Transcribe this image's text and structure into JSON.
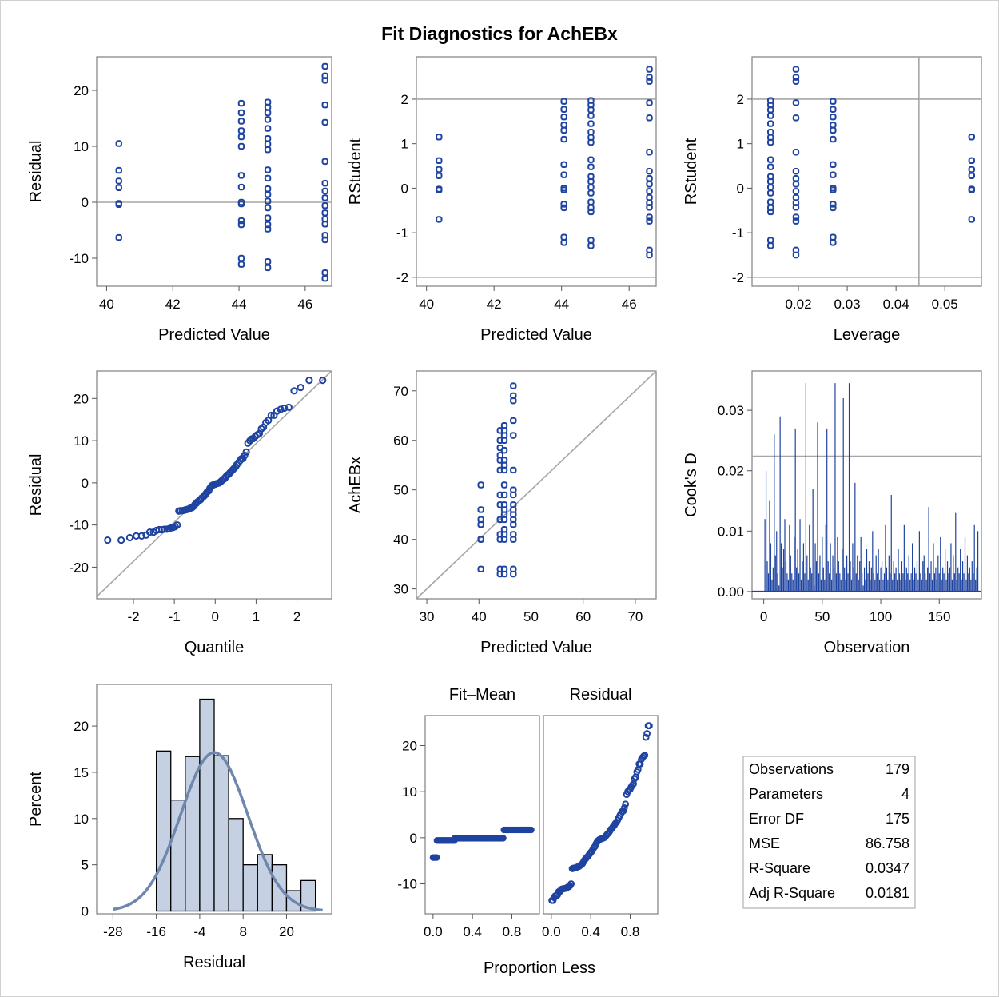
{
  "title": "Fit Diagnostics for AchEBx",
  "colors": {
    "marker": "#1f43a0",
    "reference": "#a6a6a6",
    "bar_fill": "#c5d0e3",
    "curve": "#6e87ad"
  },
  "chart_data": [
    {
      "id": "resid-vs-pred",
      "type": "scatter",
      "xlabel": "Predicted Value",
      "ylabel": "Residual",
      "xlim": [
        39.7,
        46.8
      ],
      "ylim": [
        -15,
        26
      ],
      "xticks": [
        40,
        42,
        44,
        46
      ],
      "yticks": [
        -10,
        0,
        10,
        20
      ],
      "hlines": [
        0
      ],
      "groups": [
        {
          "x": 40.37,
          "y": [
            10.5,
            5.7,
            3.8,
            2.6,
            -0.2,
            -0.4,
            -6.3
          ]
        },
        {
          "x": 44.07,
          "y": [
            17.7,
            16.0,
            14.5,
            12.8,
            11.7,
            10.0,
            4.8,
            2.7,
            0.0,
            -0.3,
            -3.3,
            -4.0,
            -10.0,
            -11.1
          ]
        },
        {
          "x": 44.87,
          "y": [
            17.9,
            17.0,
            16.0,
            14.8,
            13.2,
            11.4,
            10.4,
            9.4,
            5.8,
            4.3,
            2.4,
            1.4,
            0.2,
            -1.0,
            -2.8,
            -4.0,
            -4.8,
            -10.6,
            -11.7
          ]
        },
        {
          "x": 46.6,
          "y": [
            24.3,
            22.6,
            21.8,
            17.4,
            14.3,
            7.3,
            3.4,
            2.0,
            0.8,
            -0.6,
            -1.9,
            -3.0,
            -3.9,
            -5.9,
            -6.7,
            -12.6,
            -13.6
          ]
        }
      ]
    },
    {
      "id": "rstudent-vs-pred",
      "type": "scatter",
      "xlabel": "Predicted Value",
      "ylabel": "RStudent",
      "xlim": [
        39.7,
        46.8
      ],
      "ylim": [
        -2.2,
        2.95
      ],
      "xticks": [
        40,
        42,
        44,
        46
      ],
      "yticks": [
        -2,
        -1,
        0,
        1,
        2
      ],
      "hlines": [
        2,
        -2
      ],
      "groups": [
        {
          "x": 40.37,
          "y": [
            1.15,
            0.62,
            0.42,
            0.28,
            -0.02,
            -0.04,
            -0.7
          ]
        },
        {
          "x": 44.07,
          "y": [
            1.95,
            1.77,
            1.6,
            1.42,
            1.3,
            1.1,
            0.53,
            0.3,
            0.0,
            -0.04,
            -0.36,
            -0.44,
            -1.1,
            -1.22
          ]
        },
        {
          "x": 44.87,
          "y": [
            1.97,
            1.87,
            1.76,
            1.63,
            1.45,
            1.26,
            1.14,
            1.03,
            0.64,
            0.48,
            0.26,
            0.15,
            0.02,
            -0.11,
            -0.31,
            -0.44,
            -0.53,
            -1.17,
            -1.29
          ]
        },
        {
          "x": 46.6,
          "y": [
            2.67,
            2.49,
            2.4,
            1.92,
            1.58,
            0.81,
            0.38,
            0.22,
            0.09,
            -0.07,
            -0.21,
            -0.33,
            -0.43,
            -0.65,
            -0.74,
            -1.39,
            -1.5
          ]
        }
      ]
    },
    {
      "id": "rstudent-vs-leverage",
      "type": "scatter",
      "xlabel": "Leverage",
      "ylabel": "RStudent",
      "xlim": [
        0.0105,
        0.0575
      ],
      "ylim": [
        -2.2,
        2.95
      ],
      "xticks": [
        0.02,
        0.03,
        0.04,
        0.05
      ],
      "xticklabels": [
        "0.02",
        "0.03",
        "0.04",
        "0.05"
      ],
      "yticks": [
        -2,
        -1,
        0,
        1,
        2
      ],
      "hlines": [
        2,
        -2
      ],
      "vlines": [
        0.0447
      ],
      "groups": [
        {
          "x": 0.0555,
          "y": [
            1.15,
            0.62,
            0.42,
            0.28,
            -0.02,
            -0.04,
            -0.7
          ]
        },
        {
          "x": 0.0271,
          "y": [
            1.95,
            1.77,
            1.6,
            1.42,
            1.3,
            1.1,
            0.53,
            0.3,
            0.0,
            -0.04,
            -0.36,
            -0.44,
            -1.1,
            -1.22
          ]
        },
        {
          "x": 0.0143,
          "y": [
            1.97,
            1.87,
            1.76,
            1.63,
            1.45,
            1.26,
            1.14,
            1.03,
            0.64,
            0.48,
            0.26,
            0.15,
            0.02,
            -0.11,
            -0.31,
            -0.44,
            -0.53,
            -1.17,
            -1.29
          ]
        },
        {
          "x": 0.0195,
          "y": [
            2.67,
            2.49,
            2.4,
            1.92,
            1.58,
            0.81,
            0.38,
            0.22,
            0.09,
            -0.07,
            -0.21,
            -0.33,
            -0.43,
            -0.65,
            -0.74,
            -1.39,
            -1.5
          ]
        }
      ]
    },
    {
      "id": "qq-plot",
      "type": "scatter",
      "xlabel": "Quantile",
      "ylabel": "Residual",
      "xlim": [
        -2.9,
        2.85
      ],
      "ylim": [
        -27.5,
        26.5
      ],
      "xticks": [
        -2,
        -1,
        0,
        1,
        2
      ],
      "yticks": [
        -20,
        -10,
        0,
        10,
        20
      ],
      "refline": {
        "slope": 9.31,
        "intercept": 0
      },
      "points": [
        [
          -2.63,
          -13.6
        ],
        [
          -2.3,
          -13.6
        ],
        [
          -2.09,
          -13.0
        ],
        [
          -1.93,
          -12.6
        ],
        [
          -1.8,
          -12.6
        ],
        [
          -1.69,
          -12.4
        ],
        [
          -1.6,
          -11.7
        ],
        [
          -1.51,
          -11.7
        ],
        [
          -1.44,
          -11.3
        ],
        [
          -1.37,
          -11.1
        ],
        [
          -1.3,
          -11.1
        ],
        [
          -1.24,
          -11.0
        ],
        [
          -1.18,
          -11.0
        ],
        [
          -1.13,
          -10.9
        ],
        [
          -1.08,
          -10.7
        ],
        [
          -1.03,
          -10.6
        ],
        [
          -0.98,
          -10.4
        ],
        [
          -0.93,
          -10.0
        ],
        [
          -0.89,
          -6.7
        ],
        [
          -0.85,
          -6.6
        ],
        [
          -0.8,
          -6.6
        ],
        [
          -0.76,
          -6.5
        ],
        [
          -0.72,
          -6.4
        ],
        [
          -0.68,
          -6.3
        ],
        [
          -0.64,
          -6.2
        ],
        [
          -0.61,
          -6.0
        ],
        [
          -0.57,
          -5.9
        ],
        [
          -0.53,
          -5.6
        ],
        [
          -0.5,
          -5.2
        ],
        [
          -0.46,
          -4.8
        ],
        [
          -0.43,
          -4.5
        ],
        [
          -0.39,
          -4.2
        ],
        [
          -0.36,
          -4.0
        ],
        [
          -0.33,
          -3.6
        ],
        [
          -0.29,
          -3.3
        ],
        [
          -0.26,
          -3.0
        ],
        [
          -0.23,
          -2.6
        ],
        [
          -0.2,
          -2.2
        ],
        [
          -0.16,
          -1.9
        ],
        [
          -0.13,
          -1.3
        ],
        [
          -0.1,
          -0.9
        ],
        [
          -0.07,
          -0.6
        ],
        [
          -0.03,
          -0.4
        ],
        [
          0.0,
          -0.3
        ],
        [
          0.03,
          -0.2
        ],
        [
          0.07,
          -0.1
        ],
        [
          0.1,
          0.0
        ],
        [
          0.13,
          0.2
        ],
        [
          0.16,
          0.5
        ],
        [
          0.2,
          0.8
        ],
        [
          0.23,
          1.0
        ],
        [
          0.26,
          1.4
        ],
        [
          0.29,
          1.8
        ],
        [
          0.33,
          2.0
        ],
        [
          0.36,
          2.4
        ],
        [
          0.39,
          2.7
        ],
        [
          0.43,
          3.1
        ],
        [
          0.46,
          3.4
        ],
        [
          0.5,
          3.8
        ],
        [
          0.53,
          4.3
        ],
        [
          0.57,
          4.8
        ],
        [
          0.61,
          5.3
        ],
        [
          0.64,
          5.7
        ],
        [
          0.68,
          5.8
        ],
        [
          0.72,
          6.5
        ],
        [
          0.76,
          7.3
        ],
        [
          0.8,
          9.4
        ],
        [
          0.85,
          10.0
        ],
        [
          0.89,
          10.4
        ],
        [
          0.93,
          10.5
        ],
        [
          0.98,
          11.0
        ],
        [
          1.03,
          11.4
        ],
        [
          1.08,
          11.7
        ],
        [
          1.13,
          12.8
        ],
        [
          1.18,
          13.2
        ],
        [
          1.24,
          14.3
        ],
        [
          1.3,
          14.8
        ],
        [
          1.37,
          16.0
        ],
        [
          1.44,
          16.0
        ],
        [
          1.51,
          17.0
        ],
        [
          1.6,
          17.4
        ],
        [
          1.69,
          17.7
        ],
        [
          1.8,
          17.9
        ],
        [
          1.93,
          21.8
        ],
        [
          2.09,
          22.6
        ],
        [
          2.3,
          24.3
        ],
        [
          2.63,
          24.3
        ]
      ]
    },
    {
      "id": "observed-vs-pred",
      "type": "scatter",
      "xlabel": "Predicted Value",
      "ylabel": "AchEBx",
      "xlim": [
        28,
        74
      ],
      "ylim": [
        28,
        74
      ],
      "xticks": [
        30,
        40,
        50,
        60,
        70
      ],
      "yticks": [
        30,
        40,
        50,
        60,
        70
      ],
      "refline": {
        "slope": 1,
        "intercept": 0
      },
      "groups": [
        {
          "x": 40.37,
          "y": [
            51.0,
            46.0,
            44.0,
            43.0,
            40.0,
            40.0,
            34.0
          ]
        },
        {
          "x": 44.07,
          "y": [
            62.0,
            60.0,
            58.5,
            57.0,
            56.0,
            54.0,
            49.0,
            47.0,
            44.0,
            44.0,
            41.0,
            40.0,
            34.0,
            33.0
          ]
        },
        {
          "x": 44.87,
          "y": [
            63.0,
            62.0,
            61.0,
            60.0,
            58.0,
            56.0,
            55.0,
            54.0,
            51.0,
            49.0,
            47.0,
            46.0,
            45.0,
            44.0,
            42.0,
            41.0,
            40.0,
            34.0,
            33.0
          ]
        },
        {
          "x": 46.6,
          "y": [
            71.0,
            69.0,
            68.0,
            64.0,
            61.0,
            54.0,
            50.0,
            49.0,
            47.0,
            46.0,
            45.0,
            44.0,
            43.0,
            41.0,
            40.0,
            34.0,
            33.0
          ]
        }
      ]
    },
    {
      "id": "cooks-d",
      "type": "needle",
      "xlabel": "Observation",
      "ylabel": "Cook's D",
      "xlim": [
        -10,
        186
      ],
      "ylim": [
        -0.0012,
        0.0365
      ],
      "xticks": [
        0,
        50,
        100,
        150
      ],
      "yticks": [
        0,
        0.01,
        0.02,
        0.03
      ],
      "yticklabels": [
        "0.00",
        "0.01",
        "0.02",
        "0.03"
      ],
      "hlines": [
        0.0224
      ],
      "values": [
        0.012,
        0.02,
        0.005,
        0.003,
        0.015,
        0.008,
        0.002,
        0.004,
        0.026,
        0.006,
        0.01,
        0.003,
        0.001,
        0.029,
        0.008,
        0.004,
        0.007,
        0.012,
        0.005,
        0.003,
        0.002,
        0.011,
        0.006,
        0.003,
        0.002,
        0.009,
        0.027,
        0.004,
        0.007,
        0.003,
        0.012,
        0.002,
        0.005,
        0.008,
        0.003,
        0.0345,
        0.006,
        0.002,
        0.011,
        0.004,
        0.003,
        0.017,
        0.001,
        0.008,
        0.005,
        0.028,
        0.003,
        0.006,
        0.002,
        0.009,
        0.004,
        0.002,
        0.011,
        0.027,
        0.005,
        0.003,
        0.008,
        0.002,
        0.006,
        0.004,
        0.0345,
        0.003,
        0.009,
        0.005,
        0.003,
        0.002,
        0.007,
        0.032,
        0.004,
        0.002,
        0.006,
        0.003,
        0.0345,
        0.005,
        0.002,
        0.008,
        0.004,
        0.018,
        0.003,
        0.006,
        0.002,
        0.005,
        0.009,
        0.003,
        0.001,
        0.004,
        0.002,
        0.007,
        0.003,
        0.005,
        0.002,
        0.004,
        0.01,
        0.003,
        0.002,
        0.006,
        0.003,
        0.007,
        0.002,
        0.004,
        0.005,
        0.002,
        0.003,
        0.011,
        0.004,
        0.002,
        0.006,
        0.003,
        0.016,
        0.002,
        0.005,
        0.003,
        0.004,
        0.002,
        0.007,
        0.003,
        0.002,
        0.005,
        0.003,
        0.011,
        0.002,
        0.004,
        0.003,
        0.006,
        0.002,
        0.003,
        0.008,
        0.002,
        0.004,
        0.003,
        0.005,
        0.002,
        0.01,
        0.003,
        0.002,
        0.005,
        0.006,
        0.003,
        0.002,
        0.004,
        0.014,
        0.003,
        0.005,
        0.002,
        0.008,
        0.003,
        0.004,
        0.002,
        0.006,
        0.003,
        0.009,
        0.002,
        0.004,
        0.003,
        0.007,
        0.002,
        0.005,
        0.003,
        0.004,
        0.008,
        0.002,
        0.006,
        0.003,
        0.013,
        0.002,
        0.004,
        0.003,
        0.007,
        0.002,
        0.005,
        0.003,
        0.009,
        0.002,
        0.006,
        0.003,
        0.004,
        0.002,
        0.005,
        0.003,
        0.011,
        0.002,
        0.004,
        0.01
      ]
    },
    {
      "id": "resid-histogram",
      "type": "bar",
      "xlabel": "Residual",
      "ylabel": "Percent",
      "xlim": [
        -32.5,
        32.5
      ],
      "ylim": [
        -0.3,
        24.5
      ],
      "xticks": [
        -28,
        -16,
        -4,
        8,
        20
      ],
      "yticks": [
        0,
        5,
        10,
        15,
        20
      ],
      "bin_width": 4,
      "bins": [
        [
          -16,
          17.3
        ],
        [
          -12,
          12.0
        ],
        [
          -8,
          16.7
        ],
        [
          -4,
          22.9
        ],
        [
          0,
          16.8
        ],
        [
          4,
          10.0
        ],
        [
          8,
          5.0
        ],
        [
          12,
          6.1
        ],
        [
          16,
          5.0
        ],
        [
          20,
          2.2
        ],
        [
          24,
          3.3
        ]
      ],
      "normal_curve": {
        "mean": 0,
        "sd": 9.31
      }
    },
    {
      "id": "rf-fit-mean",
      "type": "scatter",
      "title": "Fit–Mean",
      "ylim": [
        -16.5,
        26.5
      ],
      "xlim": [
        -0.08,
        1.08
      ],
      "xticks": [
        0.0,
        0.4,
        0.8
      ],
      "xticklabels": [
        "0.0",
        "0.4",
        "0.8"
      ],
      "yticks": [
        -10,
        0,
        10,
        20
      ],
      "steps": [
        [
          0.0,
          0.04,
          -4.3
        ],
        [
          0.04,
          0.12,
          -0.6
        ],
        [
          0.12,
          0.22,
          -0.6
        ],
        [
          0.22,
          0.72,
          -0.1
        ],
        [
          0.72,
          1.0,
          1.7
        ]
      ]
    },
    {
      "id": "rf-residual",
      "type": "scatter",
      "title": "Residual",
      "ylim": [
        -16.5,
        26.5
      ],
      "xlim": [
        -0.08,
        1.08
      ],
      "xticks": [
        0.0,
        0.4,
        0.8
      ],
      "xticklabels": [
        "0.0",
        "0.4",
        "0.8"
      ],
      "quantile_of": "qq-plot"
    }
  ],
  "rf_xlabel": "Proportion Less",
  "fit_stats": [
    {
      "label": "Observations",
      "value": "179"
    },
    {
      "label": "Parameters",
      "value": "4"
    },
    {
      "label": "Error DF",
      "value": "175"
    },
    {
      "label": "MSE",
      "value": "86.758"
    },
    {
      "label": "R-Square",
      "value": "0.0347"
    },
    {
      "label": "Adj R-Square",
      "value": "0.0181"
    }
  ]
}
